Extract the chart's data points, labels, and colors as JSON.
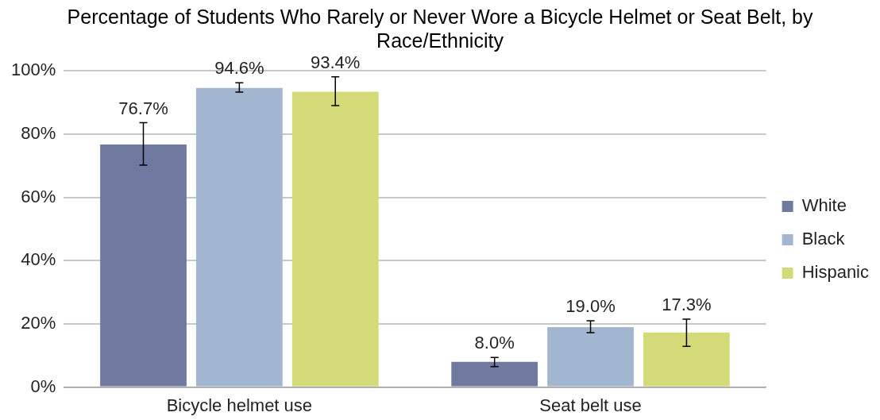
{
  "chart_data": {
    "type": "bar",
    "title": "Percentage of Students Who Rarely or Never Wore a Bicycle Helmet or Seat Belt, by Race/Ethnicity",
    "categories": [
      "Bicycle helmet use",
      "Seat belt use"
    ],
    "series": [
      {
        "name": "White",
        "color": "#7079a0",
        "values": [
          76.7,
          8.0
        ],
        "errors": [
          [
            70.2,
            83.6
          ],
          [
            6.5,
            9.4
          ]
        ],
        "value_labels": [
          "76.7%",
          "8.0%"
        ]
      },
      {
        "name": "Black",
        "color": "#a2b7cf",
        "values": [
          94.6,
          19.0
        ],
        "errors": [
          [
            93.3,
            96.2
          ],
          [
            17.2,
            21.0
          ]
        ],
        "value_labels": [
          "94.6%",
          "19.0%"
        ]
      },
      {
        "name": "Hispanic",
        "color": "#d4da78",
        "values": [
          93.4,
          17.3
        ],
        "errors": [
          [
            89.0,
            98.1
          ],
          [
            12.9,
            21.5
          ]
        ],
        "value_labels": [
          "93.4%",
          "17.3%"
        ]
      }
    ],
    "ylim": [
      0,
      100
    ],
    "yticks": [
      {
        "value": 0,
        "label": "0%"
      },
      {
        "value": 20,
        "label": "20%"
      },
      {
        "value": 40,
        "label": "40%"
      },
      {
        "value": 60,
        "label": "60%"
      },
      {
        "value": 80,
        "label": "80%"
      },
      {
        "value": 100,
        "label": "100%"
      }
    ],
    "grid": "y",
    "legend": "right"
  }
}
